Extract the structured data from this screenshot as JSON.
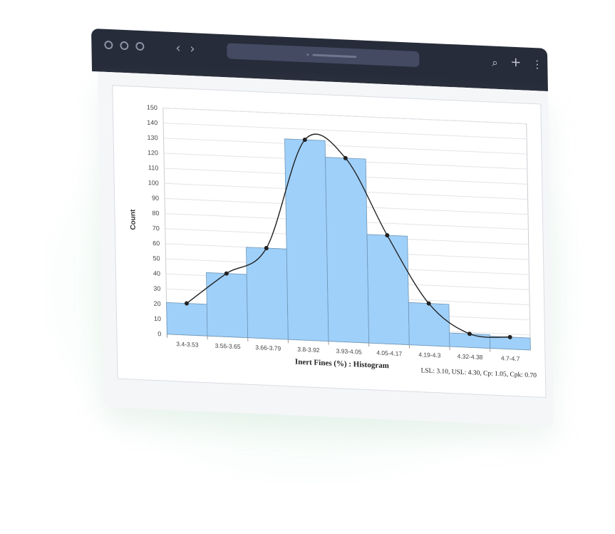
{
  "colors": {
    "window_bar": "#272c3a",
    "address_bar": "#434a62",
    "bar_fill": "#9fd0fa",
    "bar_stroke": "#6d95b5",
    "curve": "#222222",
    "grid": "#e1e4e8"
  },
  "window": {
    "controls": [
      "circle-icon",
      "circle-icon",
      "circle-icon"
    ],
    "back_icon": "chevron-left-icon",
    "forward_icon": "chevron-right-icon",
    "search_icon": "search-icon",
    "new_tab_icon": "plus-icon",
    "menu_icon": "kebab-menu-icon"
  },
  "chart_data": {
    "type": "bar",
    "title": "Inert Fines (%) : Histogram",
    "subtitle": "LSL: 3.10, USL: 4.30, Cp: 1.05, Cpk: 0.70",
    "xlabel": "",
    "ylabel": "Count",
    "ylim": [
      0,
      150
    ],
    "yticks": [
      0,
      10,
      20,
      30,
      40,
      50,
      60,
      70,
      80,
      90,
      100,
      110,
      120,
      130,
      140,
      150
    ],
    "grid": true,
    "categories": [
      "3.4-3.53",
      "3.56-3.65",
      "3.66-3.79",
      "3.8-3.92",
      "3.93-4.05",
      "4.05-4.17",
      "4.19-4.3",
      "4.32-4.38",
      "4.7-4.7"
    ],
    "values": [
      21,
      42,
      60,
      133,
      122,
      72,
      28,
      9,
      8
    ],
    "curve_values": [
      21,
      42,
      60,
      133,
      122,
      72,
      28,
      9,
      8
    ]
  }
}
